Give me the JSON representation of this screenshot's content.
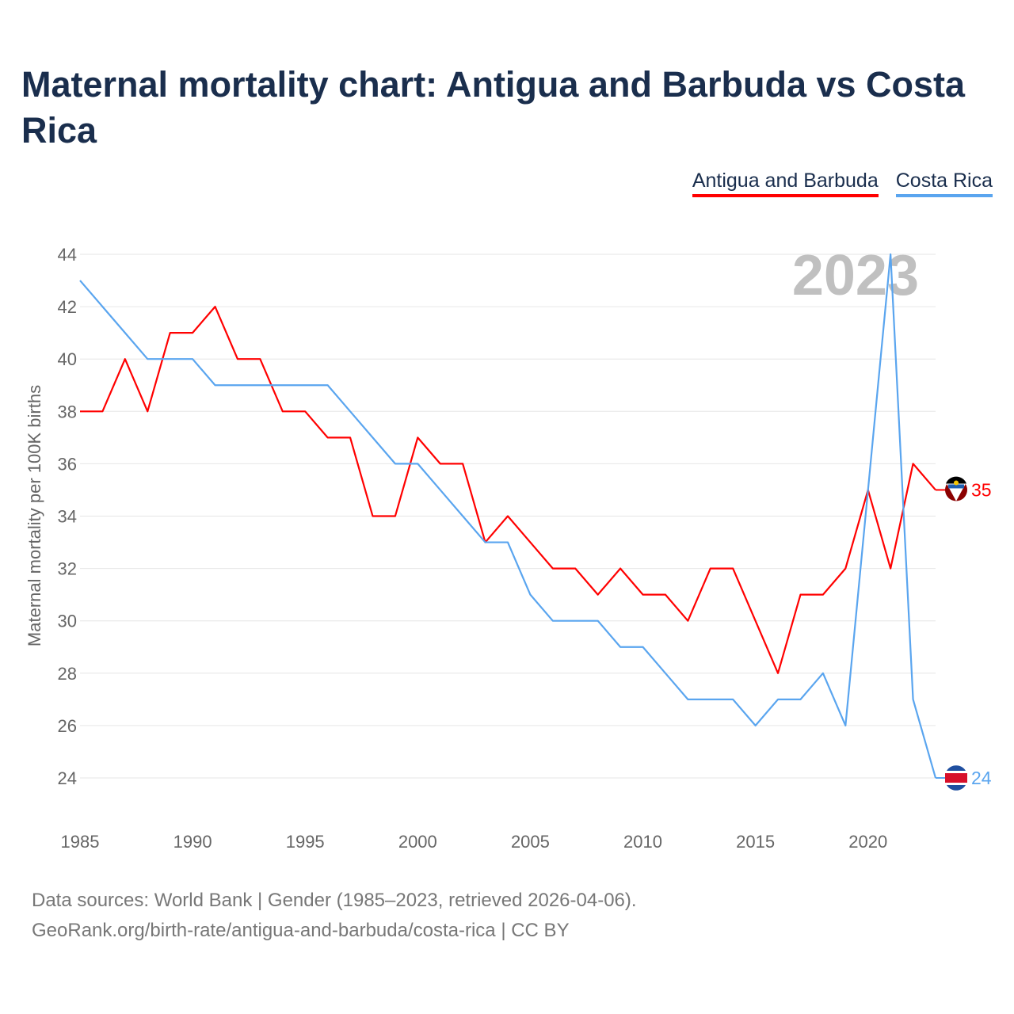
{
  "title": "Maternal mortality chart: Antigua and Barbuda vs Costa Rica",
  "footer": {
    "line1": "Data sources: World Bank | Gender (1985–2023, retrieved 2026-04-06).",
    "line2": "GeoRank.org/birth-rate/antigua-and-barbuda/costa-rica | CC BY"
  },
  "chart_data": {
    "type": "line",
    "title": "Maternal mortality chart: Antigua and Barbuda vs Costa Rica",
    "xlabel": "",
    "ylabel": "Maternal mortality per 100K births",
    "watermark_year": "2023",
    "xlim": [
      1985,
      2023
    ],
    "ylim": [
      24,
      44
    ],
    "xticks": [
      1985,
      1990,
      1995,
      2000,
      2005,
      2010,
      2015,
      2020
    ],
    "yticks": [
      24,
      26,
      28,
      30,
      32,
      34,
      36,
      38,
      40,
      42,
      44
    ],
    "grid": true,
    "legend_placement": "top-right",
    "x": [
      1985,
      1986,
      1987,
      1988,
      1989,
      1990,
      1991,
      1992,
      1993,
      1994,
      1995,
      1996,
      1997,
      1998,
      1999,
      2000,
      2001,
      2002,
      2003,
      2004,
      2005,
      2006,
      2007,
      2008,
      2009,
      2010,
      2011,
      2012,
      2013,
      2014,
      2015,
      2016,
      2017,
      2018,
      2019,
      2020,
      2021,
      2022,
      2023
    ],
    "series": [
      {
        "name": "Antigua and Barbuda",
        "color": "#ff0000",
        "end_label": "35",
        "values": [
          38,
          38,
          40,
          38,
          41,
          41,
          42,
          40,
          40,
          38,
          38,
          37,
          37,
          34,
          34,
          37,
          36,
          36,
          33,
          34,
          33,
          32,
          32,
          31,
          32,
          31,
          31,
          30,
          32,
          32,
          30,
          28,
          31,
          31,
          32,
          35,
          32,
          36,
          35
        ]
      },
      {
        "name": "Costa Rica",
        "color": "#5aa5ef",
        "end_label": "24",
        "values": [
          43,
          42,
          41,
          40,
          40,
          40,
          39,
          39,
          39,
          39,
          39,
          39,
          38,
          37,
          36,
          36,
          35,
          34,
          33,
          33,
          31,
          30,
          30,
          30,
          29,
          29,
          28,
          27,
          27,
          27,
          26,
          27,
          27,
          28,
          26,
          35,
          44,
          27,
          24
        ]
      }
    ]
  }
}
